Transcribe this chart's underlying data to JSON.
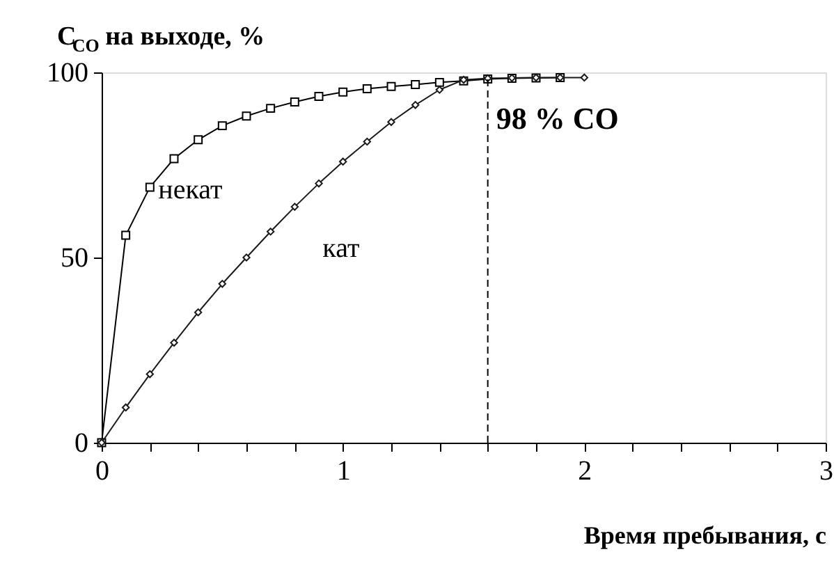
{
  "chart_data": {
    "type": "line",
    "ylabel": "C$_{CO}$ на выходе, %",
    "xlabel": "Время пребывания, с",
    "x": [
      0,
      0.1,
      0.2,
      0.3,
      0.4,
      0.5,
      0.6,
      0.7,
      0.8,
      0.9,
      1.0,
      1.1,
      1.2,
      1.3,
      1.4,
      1.5,
      1.6,
      1.7,
      1.8,
      1.9,
      2.0
    ],
    "series": [
      {
        "name": "некат",
        "color": "#000000",
        "marker": "square",
        "values": [
          0,
          56,
          69,
          76.7,
          81.8,
          85.6,
          88.2,
          90.3,
          92,
          93.5,
          94.7,
          95.6,
          96.2,
          96.7,
          97.3,
          97.7,
          98.2,
          98.4,
          98.5,
          98.6,
          null
        ]
      },
      {
        "name": "кат",
        "color": "#1a1a1a",
        "marker": "diamond",
        "values": [
          0,
          9.5,
          18.5,
          27,
          35.2,
          42.9,
          50,
          57,
          63.7,
          70,
          75.9,
          81.3,
          86.6,
          91.2,
          95.3,
          98,
          98.4,
          98.5,
          98.6,
          98.6,
          98.6
        ]
      }
    ],
    "xlim": [
      0,
      3
    ],
    "ylim": [
      0,
      100
    ],
    "xticks": [
      0,
      {
        "value": 0.2,
        "label": null
      },
      {
        "value": 0.4,
        "label": null
      },
      {
        "value": 0.6,
        "label": null
      },
      {
        "value": 0.8,
        "label": null
      },
      1,
      {
        "value": 1.2,
        "label": null
      },
      {
        "value": 1.4,
        "label": null
      },
      {
        "value": 1.6,
        "label": null
      },
      {
        "value": 1.8,
        "label": null
      },
      2,
      {
        "value": 2.2,
        "label": null
      },
      {
        "value": 2.4,
        "label": null
      },
      {
        "value": 2.6,
        "label": null
      },
      {
        "value": 2.8,
        "label": null
      },
      3
    ],
    "yticks": [
      0,
      50,
      100
    ],
    "ref_lines": [
      {
        "axis": "x",
        "value": 1.6,
        "label": "98 % CO",
        "color": "#000000",
        "line_style": "dashed"
      }
    ],
    "grid": false,
    "line_style": "solid"
  }
}
